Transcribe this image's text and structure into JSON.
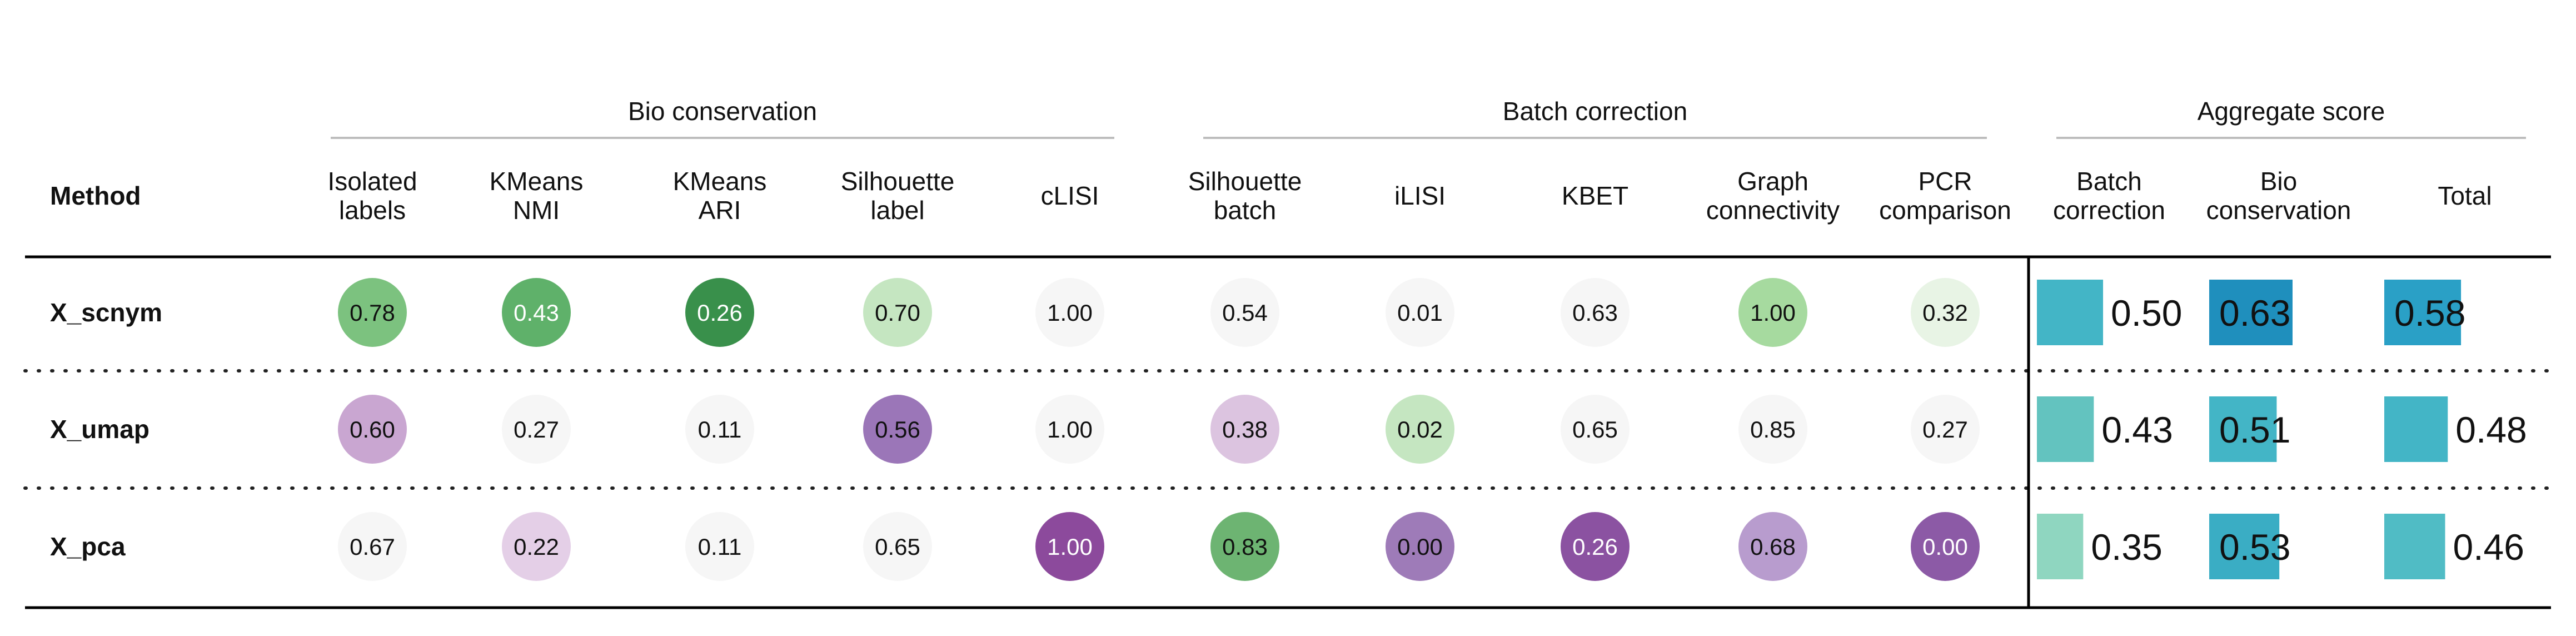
{
  "table": {
    "method_header": "Method",
    "groups": [
      {
        "id": "bio",
        "label": "Bio conservation"
      },
      {
        "id": "batch",
        "label": "Batch correction"
      },
      {
        "id": "agg",
        "label": "Aggregate score"
      }
    ],
    "metric_columns": [
      {
        "group": "bio",
        "label": [
          "Isolated",
          "labels"
        ]
      },
      {
        "group": "bio",
        "label": [
          "KMeans",
          "NMI"
        ]
      },
      {
        "group": "bio",
        "label": [
          "KMeans",
          "ARI"
        ]
      },
      {
        "group": "bio",
        "label": [
          "Silhouette",
          "label"
        ]
      },
      {
        "group": "bio",
        "label": [
          "cLISI"
        ]
      },
      {
        "group": "batch",
        "label": [
          "Silhouette",
          "batch"
        ]
      },
      {
        "group": "batch",
        "label": [
          "iLISI"
        ]
      },
      {
        "group": "batch",
        "label": [
          "KBET"
        ]
      },
      {
        "group": "batch",
        "label": [
          "Graph",
          "connectivity"
        ]
      },
      {
        "group": "batch",
        "label": [
          "PCR",
          "comparison"
        ]
      }
    ],
    "aggregate_columns": [
      {
        "label": [
          "Batch",
          "correction"
        ]
      },
      {
        "label": [
          "Bio",
          "conservation"
        ]
      },
      {
        "label": [
          "Total"
        ]
      }
    ],
    "rows": [
      {
        "method": "X_scnym",
        "metrics": [
          "0.78",
          "0.43",
          "0.26",
          "0.70",
          "1.00",
          "0.54",
          "0.01",
          "0.63",
          "1.00",
          "0.32"
        ],
        "aggregate": [
          "0.50",
          "0.63",
          "0.58"
        ]
      },
      {
        "method": "X_umap",
        "metrics": [
          "0.60",
          "0.27",
          "0.11",
          "0.56",
          "1.00",
          "0.38",
          "0.02",
          "0.65",
          "0.85",
          "0.27"
        ],
        "aggregate": [
          "0.43",
          "0.51",
          "0.48"
        ]
      },
      {
        "method": "X_pca",
        "metrics": [
          "0.67",
          "0.22",
          "0.11",
          "0.65",
          "1.00",
          "0.83",
          "0.00",
          "0.26",
          "0.68",
          "0.00"
        ],
        "aggregate": [
          "0.35",
          "0.53",
          "0.46"
        ]
      }
    ]
  },
  "chart_data": {
    "type": "table",
    "rows": [
      "X_scnym",
      "X_umap",
      "X_pca"
    ],
    "columns": [
      "Isolated labels",
      "KMeans NMI",
      "KMeans ARI",
      "Silhouette label",
      "cLISI",
      "Silhouette batch",
      "iLISI",
      "KBET",
      "Graph connectivity",
      "PCR comparison",
      "Batch correction",
      "Bio conservation",
      "Total"
    ],
    "values": [
      [
        0.78,
        0.43,
        0.26,
        0.7,
        1.0,
        0.54,
        0.01,
        0.63,
        1.0,
        0.32,
        0.5,
        0.63,
        0.58
      ],
      [
        0.6,
        0.27,
        0.11,
        0.56,
        1.0,
        0.38,
        0.02,
        0.65,
        0.85,
        0.27,
        0.43,
        0.51,
        0.48
      ],
      [
        0.67,
        0.22,
        0.11,
        0.65,
        1.0,
        0.83,
        0.0,
        0.26,
        0.68,
        0.0,
        0.35,
        0.53,
        0.46
      ]
    ],
    "circle_colors": [
      [
        "#7cc27f",
        "#5fb16a",
        "#39904b",
        "#c5e6c1",
        "#f6f6f6",
        "#f6f6f6",
        "#f6f6f6",
        "#f6f6f6",
        "#a6da9f",
        "#e8f4e5"
      ],
      [
        "#c9a6d1",
        "#f6f6f6",
        "#f6f6f6",
        "#9b76b8",
        "#f6f6f6",
        "#dcc4e0",
        "#c5e6c1",
        "#f6f6f6",
        "#f6f6f6",
        "#f6f6f6"
      ],
      [
        "#f6f6f6",
        "#e4cfe7",
        "#f6f6f6",
        "#f6f6f6",
        "#8c4a9c",
        "#6db472",
        "#9e7bb8",
        "#8b52a1",
        "#b89cce",
        "#8c5aa6"
      ]
    ],
    "circle_text_light": [
      [
        false,
        true,
        true,
        false,
        false,
        false,
        false,
        false,
        false,
        false
      ],
      [
        false,
        false,
        false,
        false,
        false,
        false,
        false,
        false,
        false,
        false
      ],
      [
        false,
        false,
        false,
        false,
        true,
        false,
        false,
        true,
        false,
        true
      ]
    ],
    "bar_colors": [
      [
        "#43b5c6",
        "#1f8fbd",
        "#2aa0c6"
      ],
      [
        "#63c3bf",
        "#43b5c6",
        "#43b5c6"
      ],
      [
        "#8fd6c0",
        "#3aadc4",
        "#50bcc5"
      ]
    ]
  }
}
